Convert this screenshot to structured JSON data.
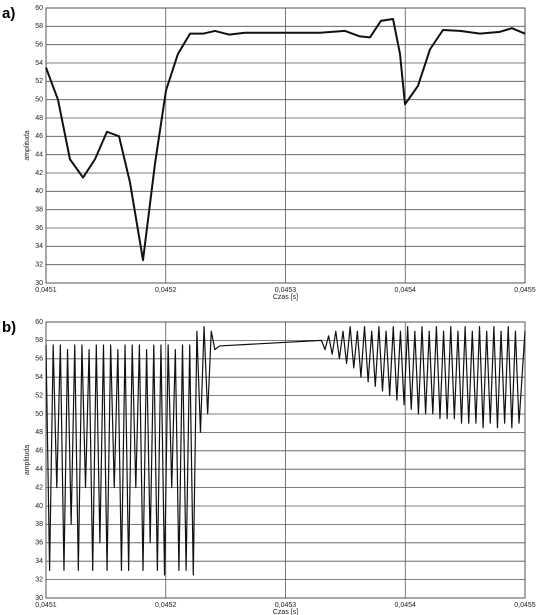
{
  "chart_data": [
    {
      "type": "line",
      "label": "a)",
      "xlabel": "Czas [s]",
      "ylabel": "amplituda",
      "xlim": [
        0.0451,
        0.0455
      ],
      "ylim": [
        30,
        60
      ],
      "grid": true,
      "xticks": [
        {
          "value": 0.0451,
          "label": "0,0451"
        },
        {
          "value": 0.0452,
          "label": "0,0452"
        },
        {
          "value": 0.0453,
          "label": "0,0453"
        },
        {
          "value": 0.0454,
          "label": "0,0454"
        },
        {
          "value": 0.0455,
          "label": "0,0455"
        }
      ],
      "yticks": [
        30,
        32,
        34,
        36,
        38,
        40,
        42,
        44,
        46,
        48,
        50,
        52,
        54,
        56,
        58,
        60
      ],
      "x": [
        0.0451,
        0.04511,
        0.04512,
        0.0451309,
        0.0451409,
        0.0451509,
        0.045161,
        0.0451701,
        0.045181,
        0.045191,
        0.0452002,
        0.0452102,
        0.0452203,
        0.0452311,
        0.0452411,
        0.0452528,
        0.0452662,
        0.0452829,
        0.0453038,
        0.0453288,
        0.0453497,
        0.0453622,
        0.0453706,
        0.0453797,
        0.0453898,
        0.0453956,
        0.0453998,
        0.0454106,
        0.0454207,
        0.0454315,
        0.0454457,
        0.0454624,
        0.0454791,
        0.0454891,
        0.0455
      ],
      "series": [
        {
          "color": "#111111",
          "values": [
            53.5,
            50,
            43.5,
            41.5,
            43.5,
            46.5,
            46,
            41,
            32.5,
            43,
            51,
            55,
            57.2,
            57.2,
            57.5,
            57.1,
            57.3,
            57.3,
            57.3,
            57.3,
            57.5,
            56.9,
            56.8,
            58.6,
            58.8,
            55,
            49.5,
            51.5,
            55.5,
            57.6,
            57.5,
            57.2,
            57.4,
            57.8,
            57.2
          ]
        }
      ]
    },
    {
      "type": "line",
      "label": "b)",
      "xlabel": "Czas [s]",
      "ylabel": "amplituda",
      "xlim": [
        0.0451,
        0.0455
      ],
      "ylim": [
        30,
        60
      ],
      "grid": true,
      "xticks": [
        {
          "value": 0.0451,
          "label": "0,0451"
        },
        {
          "value": 0.0452,
          "label": "0,0452"
        },
        {
          "value": 0.0453,
          "label": "0,0453"
        },
        {
          "value": 0.0454,
          "label": "0,0454"
        },
        {
          "value": 0.0455,
          "label": "0,0455"
        }
      ],
      "yticks": [
        30,
        32,
        34,
        36,
        38,
        40,
        42,
        44,
        46,
        48,
        50,
        52,
        54,
        56,
        58,
        60
      ],
      "x": [
        0.0451,
        0.045103,
        0.045106,
        0.045109,
        0.045112,
        0.045115,
        0.045118,
        0.045121,
        0.045124,
        0.045127,
        0.04513,
        0.045133,
        0.045136,
        0.045139,
        0.045142,
        0.045145,
        0.045148,
        0.045151,
        0.045154,
        0.045157,
        0.04516,
        0.045163,
        0.045166,
        0.045169,
        0.045172,
        0.045175,
        0.045178,
        0.045181,
        0.045184,
        0.045187,
        0.04519,
        0.045193,
        0.045196,
        0.045199,
        0.045202,
        0.045205,
        0.045208,
        0.045211,
        0.045214,
        0.045217,
        0.04522,
        0.045223,
        0.045226,
        0.045229,
        0.045232,
        0.045235,
        0.045238,
        0.045241,
        0.045245,
        0.04533,
        0.045333,
        0.045336,
        0.045339,
        0.045342,
        0.045345,
        0.045348,
        0.045351,
        0.045354,
        0.045357,
        0.04536,
        0.045363,
        0.045366,
        0.045369,
        0.045372,
        0.045375,
        0.045378,
        0.045381,
        0.045384,
        0.045387,
        0.04539,
        0.045393,
        0.045396,
        0.045399,
        0.045402,
        0.045405,
        0.045408,
        0.045411,
        0.045414,
        0.045417,
        0.04542,
        0.045423,
        0.045426,
        0.045429,
        0.045432,
        0.045435,
        0.045438,
        0.045441,
        0.045444,
        0.045447,
        0.04545,
        0.045453,
        0.045456,
        0.045459,
        0.045462,
        0.045465,
        0.045468,
        0.045471,
        0.045474,
        0.045477,
        0.04548,
        0.045483,
        0.045486,
        0.045489,
        0.045492,
        0.045495,
        0.0455
      ],
      "series": [
        {
          "color": "#111111",
          "values": [
            57.5,
            33,
            57.5,
            42,
            57.5,
            33,
            57,
            38,
            57.5,
            33,
            57.5,
            42,
            57,
            33,
            57.5,
            36,
            57.5,
            33,
            57.5,
            42,
            57,
            33,
            57.5,
            33,
            57.5,
            42,
            57.5,
            33,
            57,
            36,
            57.5,
            33,
            57.5,
            32.5,
            57.5,
            42,
            57,
            33,
            57.5,
            33,
            57.5,
            32.5,
            59,
            48,
            59.5,
            50,
            59,
            57,
            57.4,
            58,
            57,
            58.5,
            56.5,
            59,
            56,
            59,
            55.5,
            59.5,
            55,
            59,
            54,
            59.5,
            53.5,
            59,
            53,
            59.5,
            52.5,
            59,
            52,
            59.5,
            51.5,
            59,
            51,
            59.5,
            50.5,
            59,
            50,
            59.5,
            50,
            59,
            50,
            59.5,
            49.5,
            59,
            49.5,
            59.5,
            49.5,
            59,
            49,
            59.5,
            49,
            59,
            49,
            59.5,
            48.5,
            59,
            49,
            59.5,
            48.5,
            59,
            49,
            59.5,
            48.5,
            59,
            49,
            59
          ]
        }
      ]
    }
  ]
}
